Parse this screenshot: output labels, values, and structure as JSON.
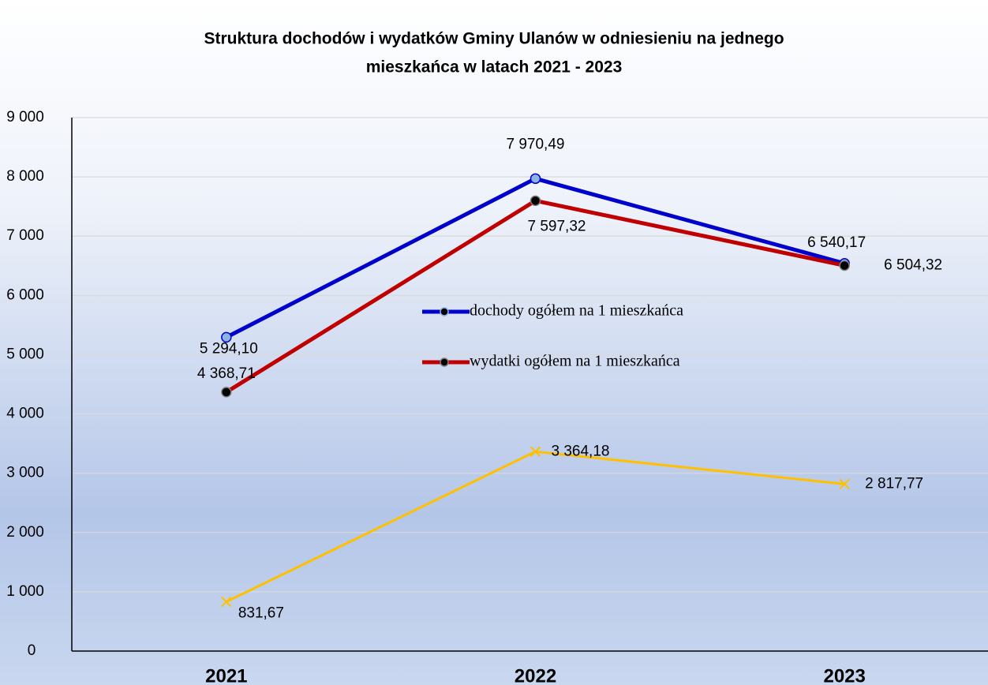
{
  "chart_data": {
    "type": "line",
    "title": "Struktura dochodów i wydatków Gminy Ulanów w odniesieniu na jednego mieszkańca w latach 2021 - 2023",
    "categories": [
      "2021",
      "2022",
      "2023"
    ],
    "series": [
      {
        "name": "dochody ogółem na 1 mieszkańca",
        "color": "#0000cc",
        "values": [
          5294.1,
          7970.49,
          6540.17
        ],
        "value_labels": [
          "5 294,10",
          "7 970,49",
          "6 540,17"
        ]
      },
      {
        "name": "wydatki ogółem na 1 mieszkańca",
        "color": "#c00000",
        "values": [
          4368.71,
          7597.32,
          6504.32
        ],
        "value_labels": [
          "4 368,71",
          "7 597,32",
          "6 504,32"
        ]
      },
      {
        "color": "#ffc000",
        "values": [
          831.67,
          3364.18,
          2817.77
        ],
        "value_labels": [
          "831,67",
          "3 364,18",
          "2 817,77"
        ]
      }
    ],
    "ylim": [
      0,
      9000
    ],
    "yticks": [
      0,
      {
        "value": 1000,
        "label": "1 000"
      },
      {
        "value": 2000,
        "label": "2 000"
      },
      {
        "value": 3000,
        "label": "3 000"
      },
      {
        "value": 4000,
        "label": "4 000"
      },
      {
        "value": 5000,
        "label": "5 000"
      },
      {
        "value": 6000,
        "label": "6 000"
      },
      {
        "value": 7000,
        "label": "7 000"
      },
      {
        "value": 8000,
        "label": "8 000"
      },
      {
        "value": 9000,
        "label": "9 000"
      }
    ],
    "grid": true
  }
}
